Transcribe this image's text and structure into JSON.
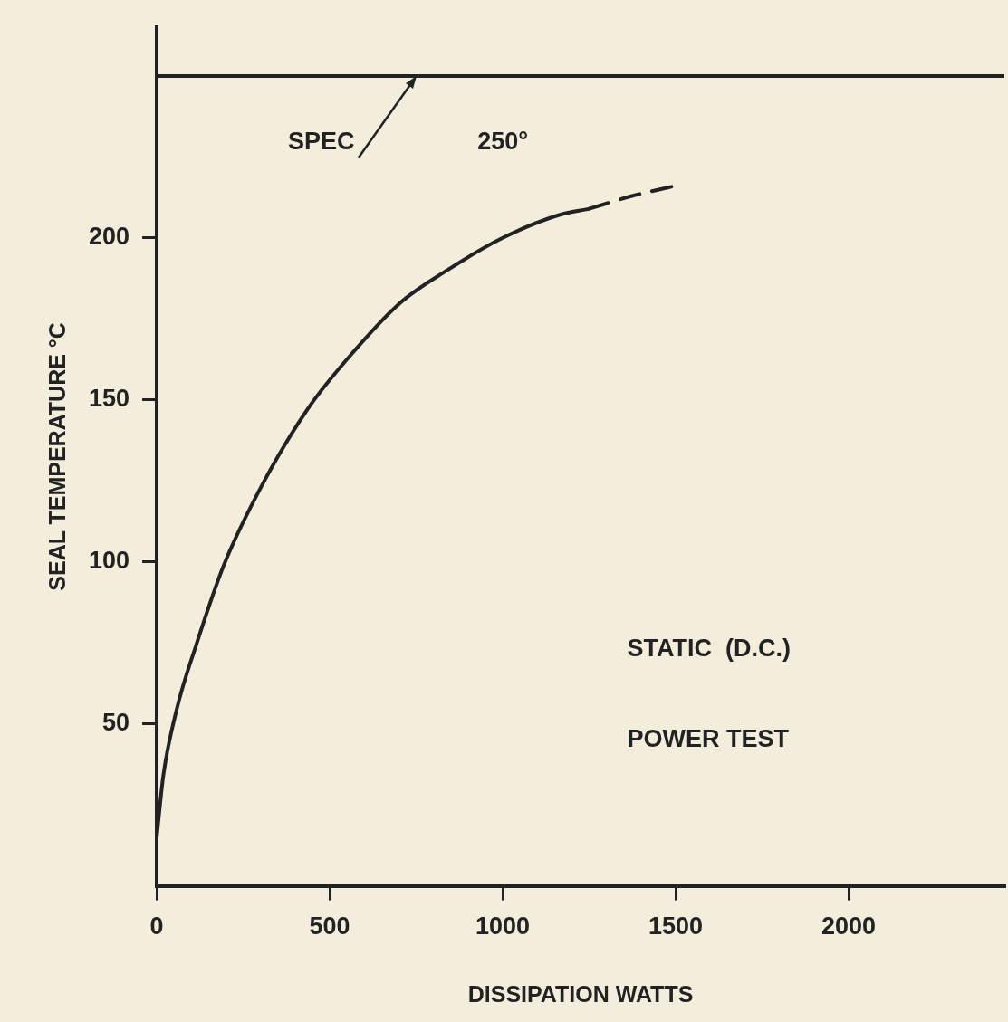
{
  "chart_data": {
    "type": "line",
    "xlabel": "DISSIPATION WATTS",
    "ylabel": "SEAL TEMPERATURE °C",
    "xlim": [
      0,
      2450
    ],
    "ylim": [
      0,
      265
    ],
    "xticks": [
      0,
      500,
      1000,
      1500,
      2000
    ],
    "yticks": [
      50,
      100,
      150,
      200
    ],
    "grid": false,
    "legend": false,
    "marker": "none",
    "series": [
      {
        "color": "#222222",
        "line_style": "solid",
        "x": [
          0,
          19,
          59,
          113,
          194,
          301,
          435,
          570,
          704,
          839,
          1000,
          1161,
          1250
        ],
        "values": [
          15,
          34,
          55,
          74,
          99,
          123,
          147,
          165,
          180,
          190,
          200,
          207,
          209
        ]
      },
      {
        "color": "#222222",
        "line_style": "dashed",
        "x": [
          1250,
          1376,
          1497
        ],
        "values": [
          209,
          213,
          216
        ]
      }
    ],
    "ref_lines": [
      {
        "axis": "y",
        "value": 250,
        "color": "#222222",
        "line_style": "solid"
      }
    ],
    "annotations": [
      {
        "text": "SPEC",
        "x": 750,
        "y": 250
      },
      {
        "text": "250°",
        "x": 1000,
        "y": 250
      },
      "STATIC  (D.C.)",
      "POWER TEST"
    ]
  }
}
